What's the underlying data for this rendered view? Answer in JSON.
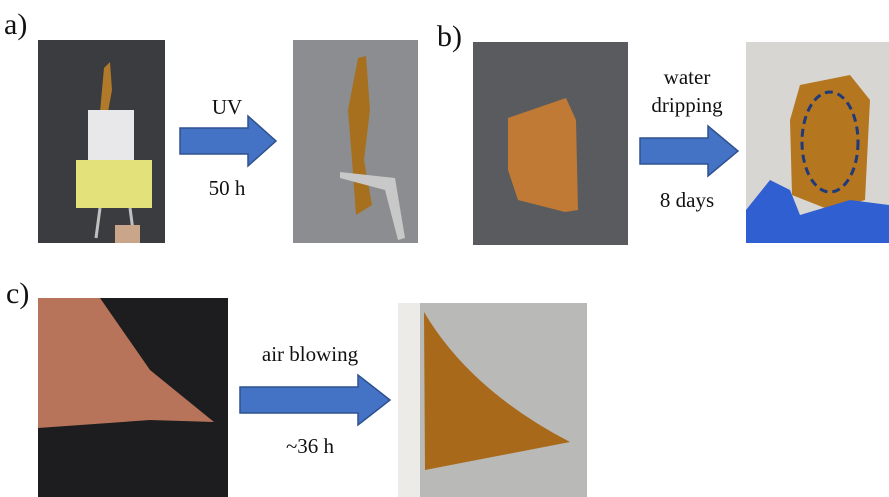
{
  "panels": [
    {
      "label": "a)",
      "arrow_above": [
        "UV"
      ],
      "arrow_below": "50 h"
    },
    {
      "label": "b)",
      "arrow_above": [
        "water",
        "dripping"
      ],
      "arrow_below": "8 days"
    },
    {
      "label": "c)",
      "arrow_above": [
        "air blowing"
      ],
      "arrow_below": "~36 h"
    }
  ]
}
